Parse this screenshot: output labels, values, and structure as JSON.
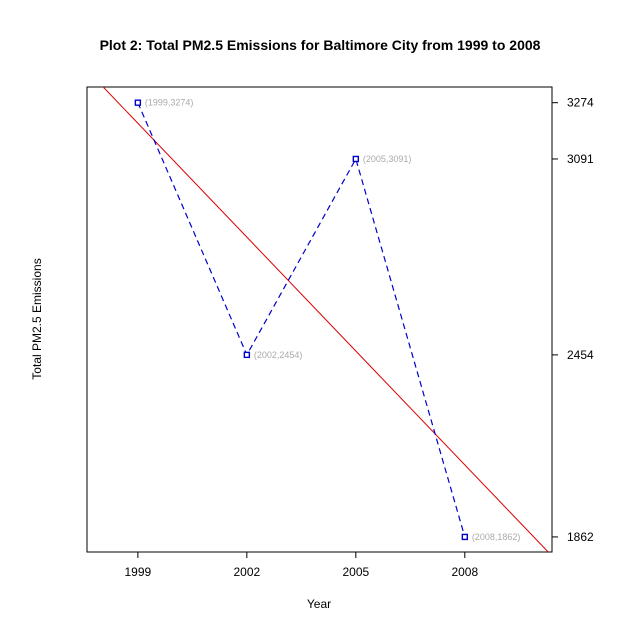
{
  "chart_data": {
    "type": "line",
    "title": "Plot 2: Total PM2.5 Emissions for Baltimore City from 1999 to 2008",
    "xlabel": "Year",
    "ylabel": "Total PM2.5 Emissions",
    "x": [
      1999,
      2002,
      2005,
      2008
    ],
    "xlim": [
      1997.6,
      2010.4
    ],
    "ylim": [
      1813,
      3325
    ],
    "x_ticks": [
      "1999",
      "2002",
      "2005",
      "2008"
    ],
    "y_ticks": [
      "1862",
      "2454",
      "3091",
      "3274"
    ],
    "grid": false,
    "series": [
      {
        "values": [
          3274,
          2454,
          3091,
          1862
        ],
        "color": "#0000cc",
        "line_style": "dashed",
        "marker": "square",
        "point_labels": [
          "(1999,3274)",
          "(2002,2454)",
          "(2005,3091)",
          "(2008,1862)"
        ]
      }
    ],
    "trend_line": {
      "color": "#dd0000",
      "line_style": "solid",
      "start": {
        "x": 1997.6,
        "y": 3380
      },
      "end": {
        "x": 2010.4,
        "y": 1800
      }
    }
  }
}
